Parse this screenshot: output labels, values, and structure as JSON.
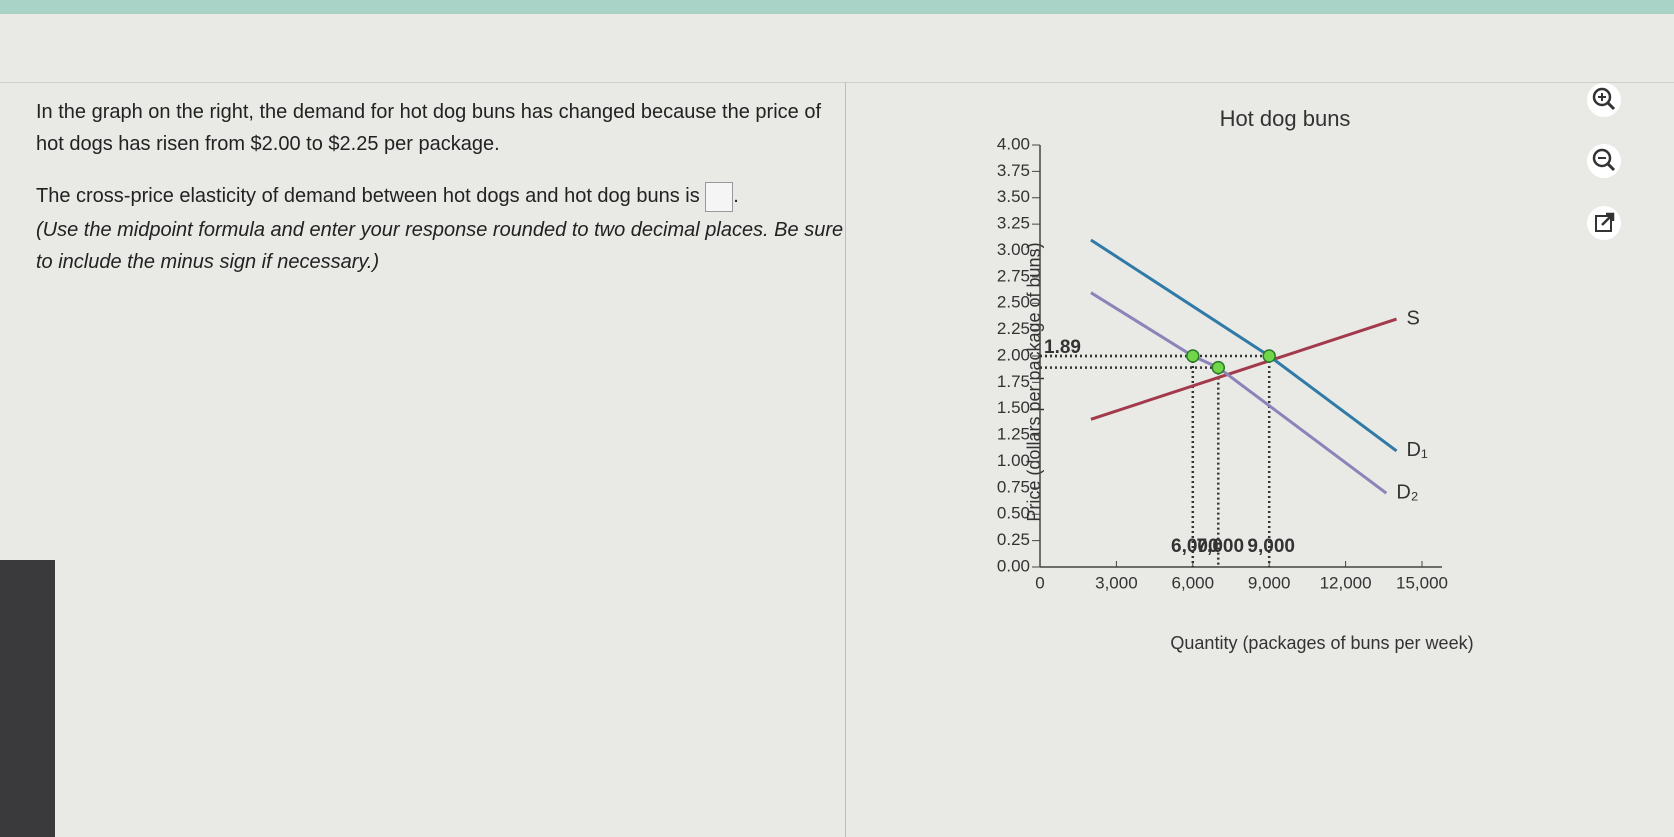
{
  "question": {
    "intro": "In the graph on the right, the demand for hot dog buns has changed because the price of hot dogs has risen from $2.00 to $2.25 per package.",
    "prompt": "The cross-price elasticity of demand between hot dogs and hot dog buns is",
    "prompt_end": ".",
    "instructions": "(Use the midpoint formula and enter your response rounded to two decimal places. Be sure to include the minus sign if necessary.)"
  },
  "chart_data": {
    "type": "line",
    "title": "Hot dog buns",
    "xlabel": "Quantity (packages of buns per week)",
    "ylabel": "Price (dollars per package of buns)",
    "xlim": [
      0,
      15000
    ],
    "xticks": [
      0,
      {
        "value": 3000,
        "label": "3,000"
      },
      {
        "value": 6000,
        "label": "6,000"
      },
      {
        "value": 9000,
        "label": "9,000"
      },
      {
        "value": 12000,
        "label": "12,000"
      },
      {
        "value": 15000,
        "label": "15,000"
      }
    ],
    "ylim": [
      0,
      4
    ],
    "yticks": [
      {
        "value": 0,
        "label": "0.00"
      },
      {
        "value": 0.25,
        "label": "0.25"
      },
      {
        "value": 0.5,
        "label": "0.50"
      },
      {
        "value": 0.75,
        "label": "0.75"
      },
      {
        "value": 1,
        "label": "1.00"
      },
      {
        "value": 1.25,
        "label": "1.25"
      },
      {
        "value": 1.5,
        "label": "1.50"
      },
      {
        "value": 1.75,
        "label": "1.75"
      },
      {
        "value": 2,
        "label": "2.00"
      },
      {
        "value": 2.25,
        "label": "2.25"
      },
      {
        "value": 2.5,
        "label": "2.50"
      },
      {
        "value": 2.75,
        "label": "2.75"
      },
      {
        "value": 3,
        "label": "3.00"
      },
      {
        "value": 3.25,
        "label": "3.25"
      },
      {
        "value": 3.5,
        "label": "3.50"
      },
      {
        "value": 3.75,
        "label": "3.75"
      },
      {
        "value": 4,
        "label": "4.00"
      }
    ],
    "series": [
      {
        "name": "S",
        "color": "#a33a4c",
        "x": [
          2000,
          14000
        ],
        "values": [
          1.4,
          2.35
        ]
      },
      {
        "name": "D₁",
        "color": "#2f7aa6",
        "x": [
          2000,
          9000,
          14000
        ],
        "values": [
          3.1,
          2.0,
          1.1
        ]
      },
      {
        "name": "D₂",
        "color": "#8c84b8",
        "x": [
          2000,
          6000,
          7000,
          13600
        ],
        "values": [
          2.6,
          2.0,
          1.89,
          0.7
        ]
      }
    ],
    "points": {
      "color": "#72d64a",
      "x": [
        6000,
        7000,
        9000
      ],
      "values": [
        2.0,
        1.89,
        2.0
      ]
    },
    "annotations": [
      {
        "text": "1.89",
        "axis": "y",
        "value": 1.89
      },
      {
        "text": "6,000",
        "axis": "x",
        "value": 6000
      },
      {
        "text": "7,000",
        "axis": "x",
        "value": 7000
      },
      {
        "text": "9,000",
        "axis": "x",
        "value": 9000
      }
    ]
  }
}
